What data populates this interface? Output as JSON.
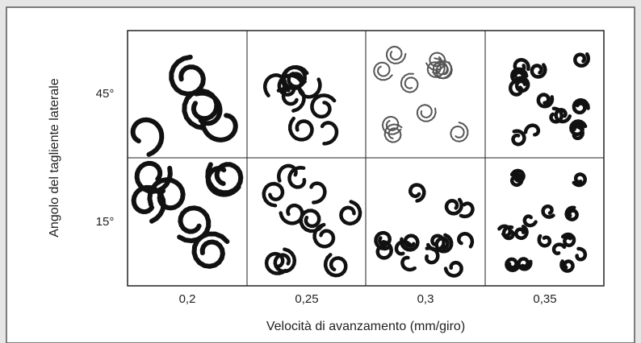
{
  "figure": {
    "y_label": "Angolo del tagliente laterale",
    "x_label": "Velocità di avanzamento (mm/giro)",
    "rows": [
      "45°",
      "15°"
    ],
    "columns": [
      "0,2",
      "0,25",
      "0,3",
      "0,35"
    ]
  }
}
